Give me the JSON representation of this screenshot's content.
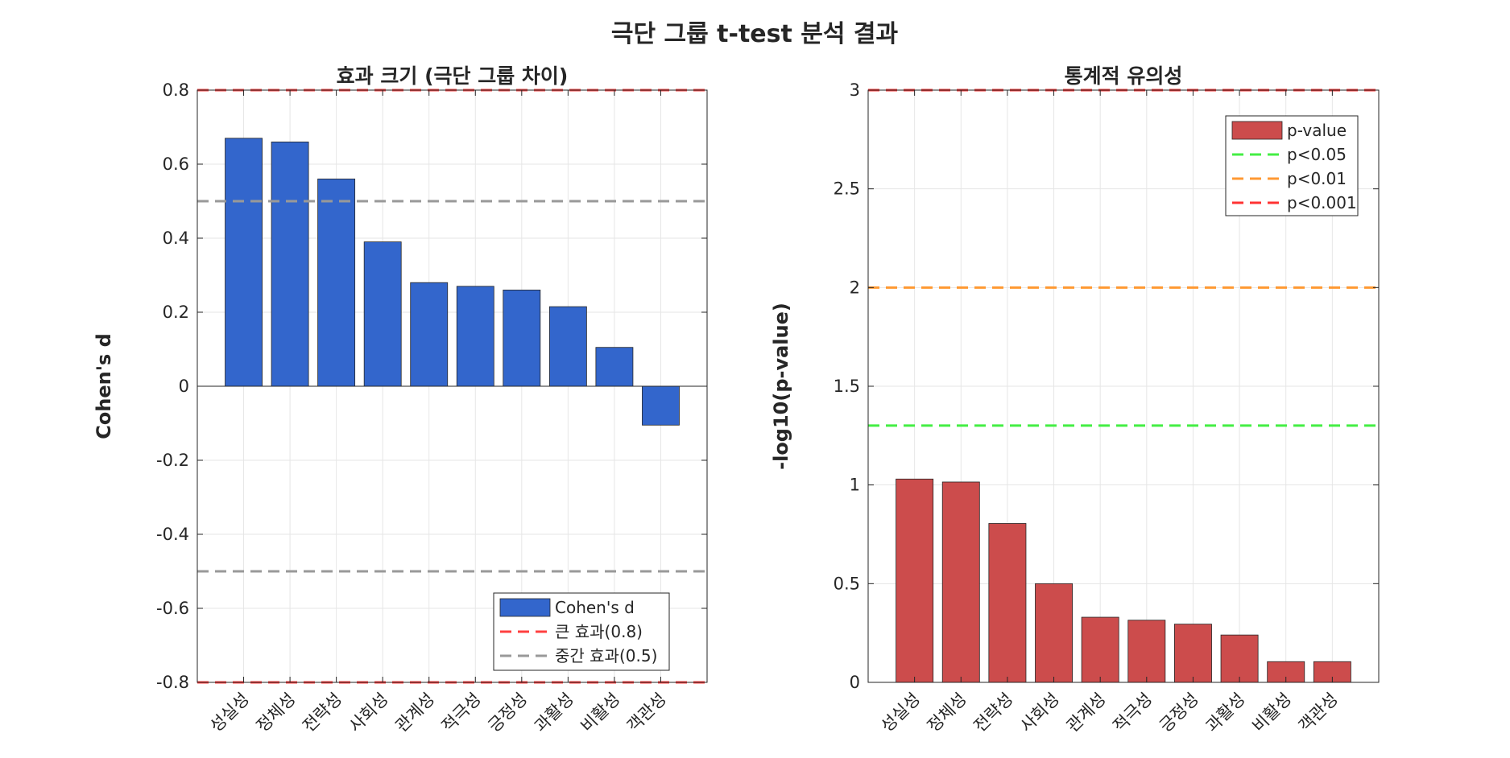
{
  "figure": {
    "title": "극단 그룹 t-test 분석 결과"
  },
  "chart_data": [
    {
      "type": "bar",
      "title": "효과 크기 (극단 그룹 차이)",
      "xlabel": "",
      "ylabel": "Cohen's d",
      "categories": [
        "성실성",
        "정체성",
        "전략성",
        "사회성",
        "관계성",
        "적극성",
        "긍정성",
        "과활성",
        "비활성",
        "객관성"
      ],
      "series": [
        {
          "name": "Cohen's d",
          "values": [
            0.67,
            0.66,
            0.56,
            0.39,
            0.28,
            0.27,
            0.26,
            0.215,
            0.105,
            -0.105
          ],
          "color": "#3366cc"
        }
      ],
      "reference_lines": [
        {
          "name": "큰 효과(0.8)",
          "values": [
            0.8,
            -0.8
          ],
          "color": "#ff4040"
        },
        {
          "name": "중간 효과(0.5)",
          "values": [
            0.5,
            -0.5
          ],
          "color": "#999999"
        }
      ],
      "ylim": [
        -0.8,
        0.8
      ],
      "yticks": [
        "-0.8",
        "-0.6",
        "-0.4",
        "-0.2",
        "0",
        "0.2",
        "0.4",
        "0.6",
        "0.8"
      ],
      "grid": true,
      "legend_position": "bottom-right"
    },
    {
      "type": "bar",
      "title": "통계적 유의성",
      "xlabel": "",
      "ylabel": "-log10(p-value)",
      "categories": [
        "성실성",
        "정체성",
        "전략성",
        "사회성",
        "관계성",
        "적극성",
        "긍정성",
        "과활성",
        "비활성",
        "객관성"
      ],
      "series": [
        {
          "name": "p-value",
          "values": [
            1.03,
            1.015,
            0.805,
            0.5,
            0.33,
            0.315,
            0.295,
            0.24,
            0.105,
            0.105
          ],
          "color": "#cc4c4c"
        }
      ],
      "reference_lines": [
        {
          "name": "p<0.05",
          "values": [
            1.301
          ],
          "color": "#44ee44"
        },
        {
          "name": "p<0.01",
          "values": [
            2.0
          ],
          "color": "#ff9933"
        },
        {
          "name": "p<0.001",
          "values": [
            3.0
          ],
          "color": "#ff3333"
        }
      ],
      "ylim": [
        0,
        3
      ],
      "yticks": [
        "0",
        "0.5",
        "1",
        "1.5",
        "2",
        "2.5",
        "3"
      ],
      "grid": true,
      "legend_position": "top-right"
    }
  ]
}
